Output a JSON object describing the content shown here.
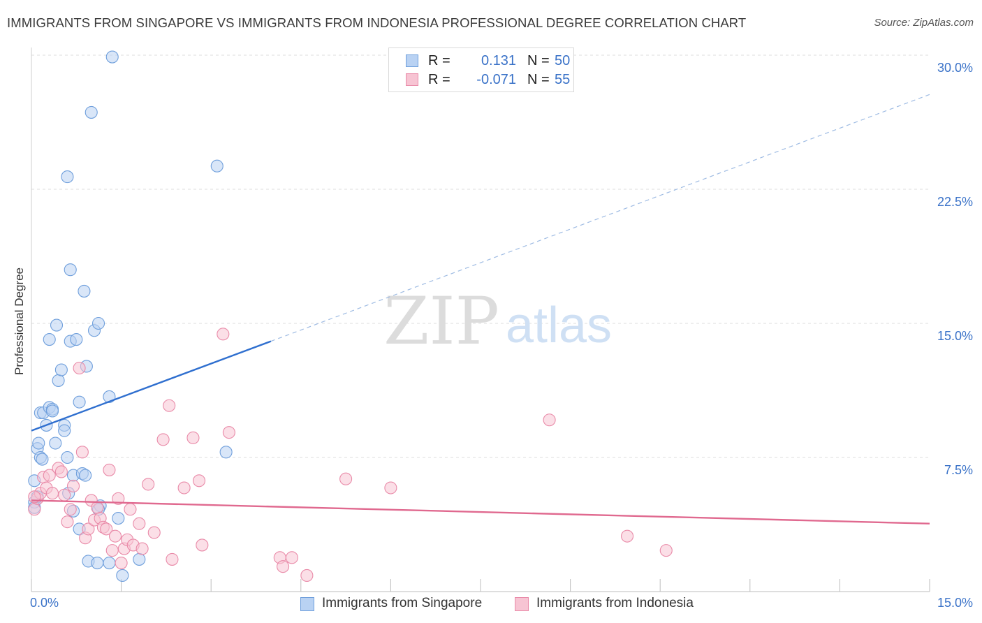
{
  "header": {
    "title": "IMMIGRANTS FROM SINGAPORE VS IMMIGRANTS FROM INDONESIA PROFESSIONAL DEGREE CORRELATION CHART",
    "source": "Source: ZipAtlas.com"
  },
  "watermark": {
    "zip": "ZIP",
    "atlas": "atlas"
  },
  "legend_top": {
    "rows": [
      {
        "r_label": "R =",
        "r_value": "0.131",
        "n_label": "N =",
        "n_value": "50"
      },
      {
        "r_label": "R =",
        "r_value": "-0.071",
        "n_label": "N =",
        "n_value": "55"
      }
    ]
  },
  "colors": {
    "singapore_fill": "#b9d2f3",
    "singapore_stroke": "#6f9fdc",
    "singapore_line": "#2f6fcf",
    "indonesia_fill": "#f7c4d3",
    "indonesia_stroke": "#e98aa8",
    "indonesia_line": "#e0698f",
    "axis_label": "#3a72c8",
    "grid": "#dedede"
  },
  "chart_data": {
    "type": "scatter",
    "title": "IMMIGRANTS FROM SINGAPORE VS IMMIGRANTS FROM INDONESIA PROFESSIONAL DEGREE CORRELATION CHART",
    "xlabel": "",
    "ylabel": "Professional Degree",
    "xlim": [
      0,
      15
    ],
    "ylim": [
      0,
      30
    ],
    "x_ticks": [
      0,
      1.5,
      3,
      4.5,
      6,
      7.5,
      9,
      10.5,
      12,
      13.5,
      15
    ],
    "x_tick_labels": {
      "min": "0.0%",
      "max": "15.0%"
    },
    "y_ticks": [
      7.5,
      15,
      22.5,
      30
    ],
    "y_tick_labels": [
      "7.5%",
      "15.0%",
      "22.5%",
      "30.0%"
    ],
    "legend_position": "bottom-center",
    "series": [
      {
        "name": "Immigrants from Singapore",
        "R": 0.131,
        "N": 50,
        "trend": {
          "x": [
            0,
            4
          ],
          "y": [
            9.0,
            14.0
          ],
          "dashed_extension": {
            "x": [
              4,
              15
            ],
            "y": [
              14.0,
              27.8
            ]
          }
        },
        "points": [
          [
            0.05,
            6.2
          ],
          [
            0.05,
            5.0
          ],
          [
            0.05,
            4.7
          ],
          [
            0.1,
            8.0
          ],
          [
            0.12,
            8.3
          ],
          [
            0.15,
            7.5
          ],
          [
            0.15,
            10.0
          ],
          [
            0.2,
            10.0
          ],
          [
            0.25,
            9.3
          ],
          [
            0.3,
            14.1
          ],
          [
            0.3,
            10.3
          ],
          [
            0.35,
            10.2
          ],
          [
            0.4,
            8.3
          ],
          [
            0.42,
            14.9
          ],
          [
            0.45,
            11.8
          ],
          [
            0.5,
            12.4
          ],
          [
            0.55,
            9.3
          ],
          [
            0.6,
            7.5
          ],
          [
            0.62,
            5.5
          ],
          [
            0.65,
            18.0
          ],
          [
            0.6,
            23.2
          ],
          [
            0.65,
            14.0
          ],
          [
            0.7,
            6.5
          ],
          [
            0.7,
            4.5
          ],
          [
            0.75,
            14.1
          ],
          [
            0.8,
            3.5
          ],
          [
            0.8,
            10.6
          ],
          [
            0.85,
            6.6
          ],
          [
            0.88,
            16.8
          ],
          [
            0.9,
            6.5
          ],
          [
            0.92,
            12.6
          ],
          [
            0.95,
            1.7
          ],
          [
            1.0,
            26.8
          ],
          [
            1.05,
            14.6
          ],
          [
            1.1,
            1.6
          ],
          [
            1.12,
            15.0
          ],
          [
            1.15,
            4.8
          ],
          [
            1.3,
            1.6
          ],
          [
            1.3,
            10.9
          ],
          [
            1.35,
            29.9
          ],
          [
            1.45,
            4.1
          ],
          [
            1.52,
            0.9
          ],
          [
            1.8,
            1.8
          ],
          [
            3.1,
            23.8
          ],
          [
            3.25,
            7.8
          ],
          [
            0.55,
            9.0
          ],
          [
            0.18,
            7.4
          ],
          [
            0.35,
            10.1
          ],
          [
            1.12,
            4.6
          ],
          [
            0.1,
            5.3
          ]
        ]
      },
      {
        "name": "Immigrants from Indonesia",
        "R": -0.071,
        "N": 55,
        "trend": {
          "x": [
            0,
            15
          ],
          "y": [
            5.1,
            3.8
          ]
        },
        "points": [
          [
            0.05,
            4.6
          ],
          [
            0.1,
            5.2
          ],
          [
            0.15,
            5.5
          ],
          [
            0.2,
            6.4
          ],
          [
            0.25,
            5.8
          ],
          [
            0.3,
            6.5
          ],
          [
            0.35,
            5.5
          ],
          [
            0.45,
            6.9
          ],
          [
            0.5,
            6.7
          ],
          [
            0.55,
            5.4
          ],
          [
            0.6,
            3.9
          ],
          [
            0.65,
            4.6
          ],
          [
            0.7,
            5.9
          ],
          [
            0.8,
            12.5
          ],
          [
            0.85,
            7.8
          ],
          [
            0.9,
            3.0
          ],
          [
            0.95,
            3.5
          ],
          [
            1.0,
            5.1
          ],
          [
            1.05,
            4.0
          ],
          [
            1.1,
            4.7
          ],
          [
            1.15,
            4.1
          ],
          [
            1.2,
            3.6
          ],
          [
            1.25,
            3.5
          ],
          [
            1.3,
            6.8
          ],
          [
            1.35,
            2.3
          ],
          [
            1.4,
            3.1
          ],
          [
            1.45,
            5.2
          ],
          [
            1.5,
            1.6
          ],
          [
            1.55,
            2.4
          ],
          [
            1.6,
            2.9
          ],
          [
            1.65,
            4.6
          ],
          [
            1.7,
            2.6
          ],
          [
            1.8,
            3.8
          ],
          [
            1.85,
            2.4
          ],
          [
            1.95,
            6.0
          ],
          [
            2.05,
            3.3
          ],
          [
            2.2,
            8.5
          ],
          [
            2.3,
            10.4
          ],
          [
            2.35,
            1.8
          ],
          [
            2.55,
            5.8
          ],
          [
            2.7,
            8.6
          ],
          [
            2.8,
            6.2
          ],
          [
            2.85,
            2.6
          ],
          [
            3.2,
            14.4
          ],
          [
            3.3,
            8.9
          ],
          [
            4.15,
            1.9
          ],
          [
            4.2,
            1.4
          ],
          [
            4.35,
            1.9
          ],
          [
            4.6,
            0.9
          ],
          [
            5.25,
            6.3
          ],
          [
            6.0,
            5.8
          ],
          [
            8.65,
            9.6
          ],
          [
            9.95,
            3.1
          ],
          [
            10.6,
            2.3
          ],
          [
            0.05,
            5.3
          ]
        ]
      }
    ]
  }
}
